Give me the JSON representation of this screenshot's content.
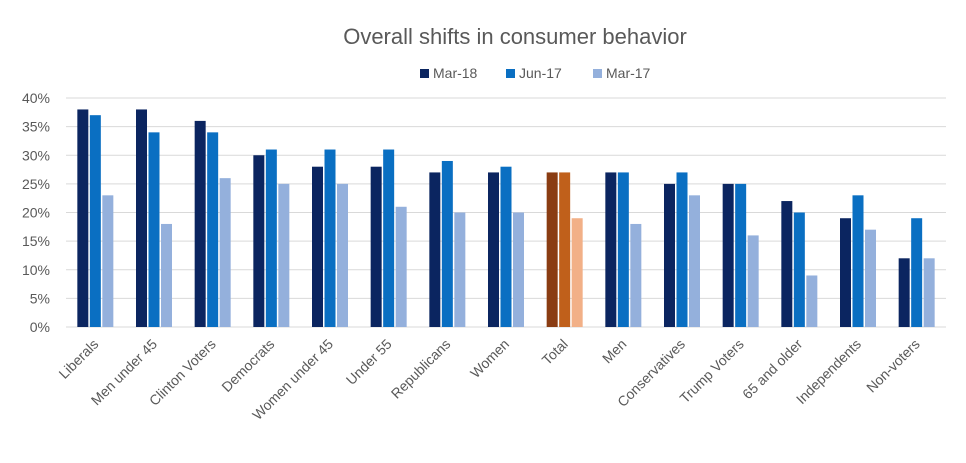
{
  "chart_data": {
    "type": "bar",
    "title": "Overall shifts in consumer behavior",
    "xlabel": "",
    "ylabel": "",
    "ylim": [
      0,
      40
    ],
    "yticks": [
      "0%",
      "5%",
      "10%",
      "15%",
      "20%",
      "25%",
      "30%",
      "35%",
      "40%"
    ],
    "ytick_values": [
      0,
      5,
      10,
      15,
      20,
      25,
      30,
      35,
      40
    ],
    "grid": true,
    "legend_position": "top-center",
    "categories": [
      "Liberals",
      "Men under 45",
      "Clinton Voters",
      "Democrats",
      "Women under 45",
      "Under 55",
      "Republicans",
      "Women",
      "Total",
      "Men",
      "Conservatives",
      "Trump Voters",
      "65 and older",
      "Independents",
      "Non-voters"
    ],
    "series": [
      {
        "name": "Mar-18",
        "color": "#0b2560",
        "values": [
          38,
          38,
          36,
          30,
          28,
          28,
          27,
          27,
          27,
          27,
          25,
          25,
          22,
          19,
          12
        ]
      },
      {
        "name": "Jun-17",
        "color": "#0a6fc2",
        "values": [
          37,
          34,
          34,
          31,
          31,
          31,
          29,
          28,
          27,
          27,
          27,
          25,
          20,
          23,
          19
        ]
      },
      {
        "name": "Mar-17",
        "color": "#94b0dc",
        "values": [
          23,
          18,
          26,
          25,
          25,
          21,
          20,
          20,
          19,
          18,
          23,
          16,
          9,
          17,
          12
        ]
      }
    ],
    "highlight": {
      "category": "Total",
      "colors": [
        "#8a3c12",
        "#c0601b",
        "#f2b087"
      ]
    }
  },
  "colors": {
    "text": "#595959",
    "grid": "#d9d9d9"
  }
}
